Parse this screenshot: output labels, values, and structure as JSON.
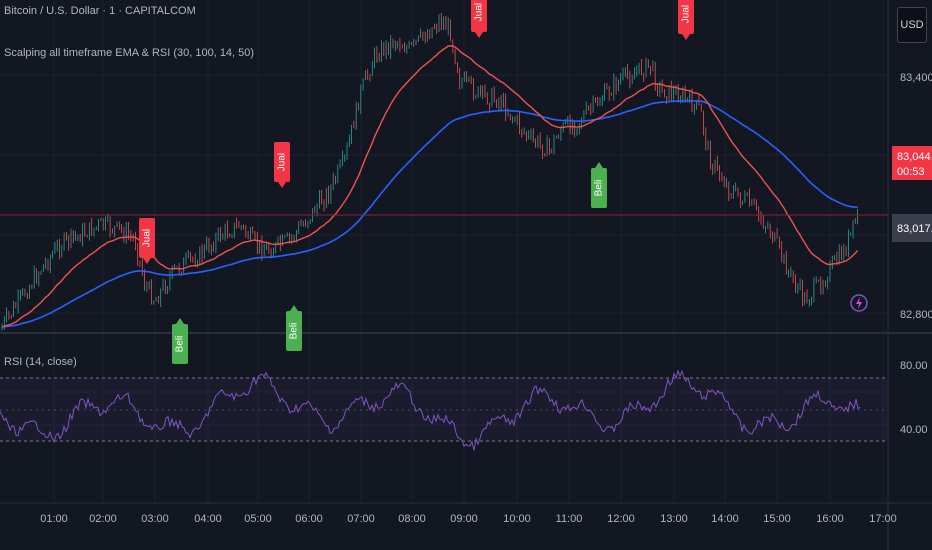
{
  "header": {
    "symbol_line": "Bitcoin / U.S. Dollar · 1 · CAPITALCOM",
    "indicator_line": "Scalping all timeframe EMA & RSI (30, 100, 14, 50)"
  },
  "currency_button": "USD",
  "price_axis": {
    "labels": [
      "83,400.00",
      "82,800.00"
    ],
    "current_price": "83,044.10",
    "countdown": "00:53",
    "line_price": "83,017.30"
  },
  "rsi_pane": {
    "title": "RSI (14, close)",
    "labels": [
      "80.00",
      "40.00"
    ]
  },
  "time_axis": {
    "labels": [
      "01:00",
      "02:00",
      "03:00",
      "04:00",
      "05:00",
      "06:00",
      "07:00",
      "08:00",
      "09:00",
      "10:00",
      "11:00",
      "12:00",
      "13:00",
      "14:00",
      "15:00",
      "16:00",
      "17:00"
    ]
  },
  "signals": [
    {
      "type": "sell",
      "label": "Jual"
    },
    {
      "type": "buy",
      "label": "Beli"
    },
    {
      "type": "sell",
      "label": "Jual"
    },
    {
      "type": "buy",
      "label": "Beli"
    },
    {
      "type": "sell",
      "label": "Jual"
    },
    {
      "type": "buy",
      "label": "Beli"
    },
    {
      "type": "sell",
      "label": "Jual"
    }
  ],
  "colors": {
    "background": "#131722",
    "ema_fast": "#ef5350",
    "ema_slow": "#2962ff",
    "rsi_line": "#7e57c2",
    "sell_tag": "#f23645",
    "buy_tag": "#4caf50",
    "up_candle": "#26a69a",
    "down_candle": "#ef5350"
  }
}
